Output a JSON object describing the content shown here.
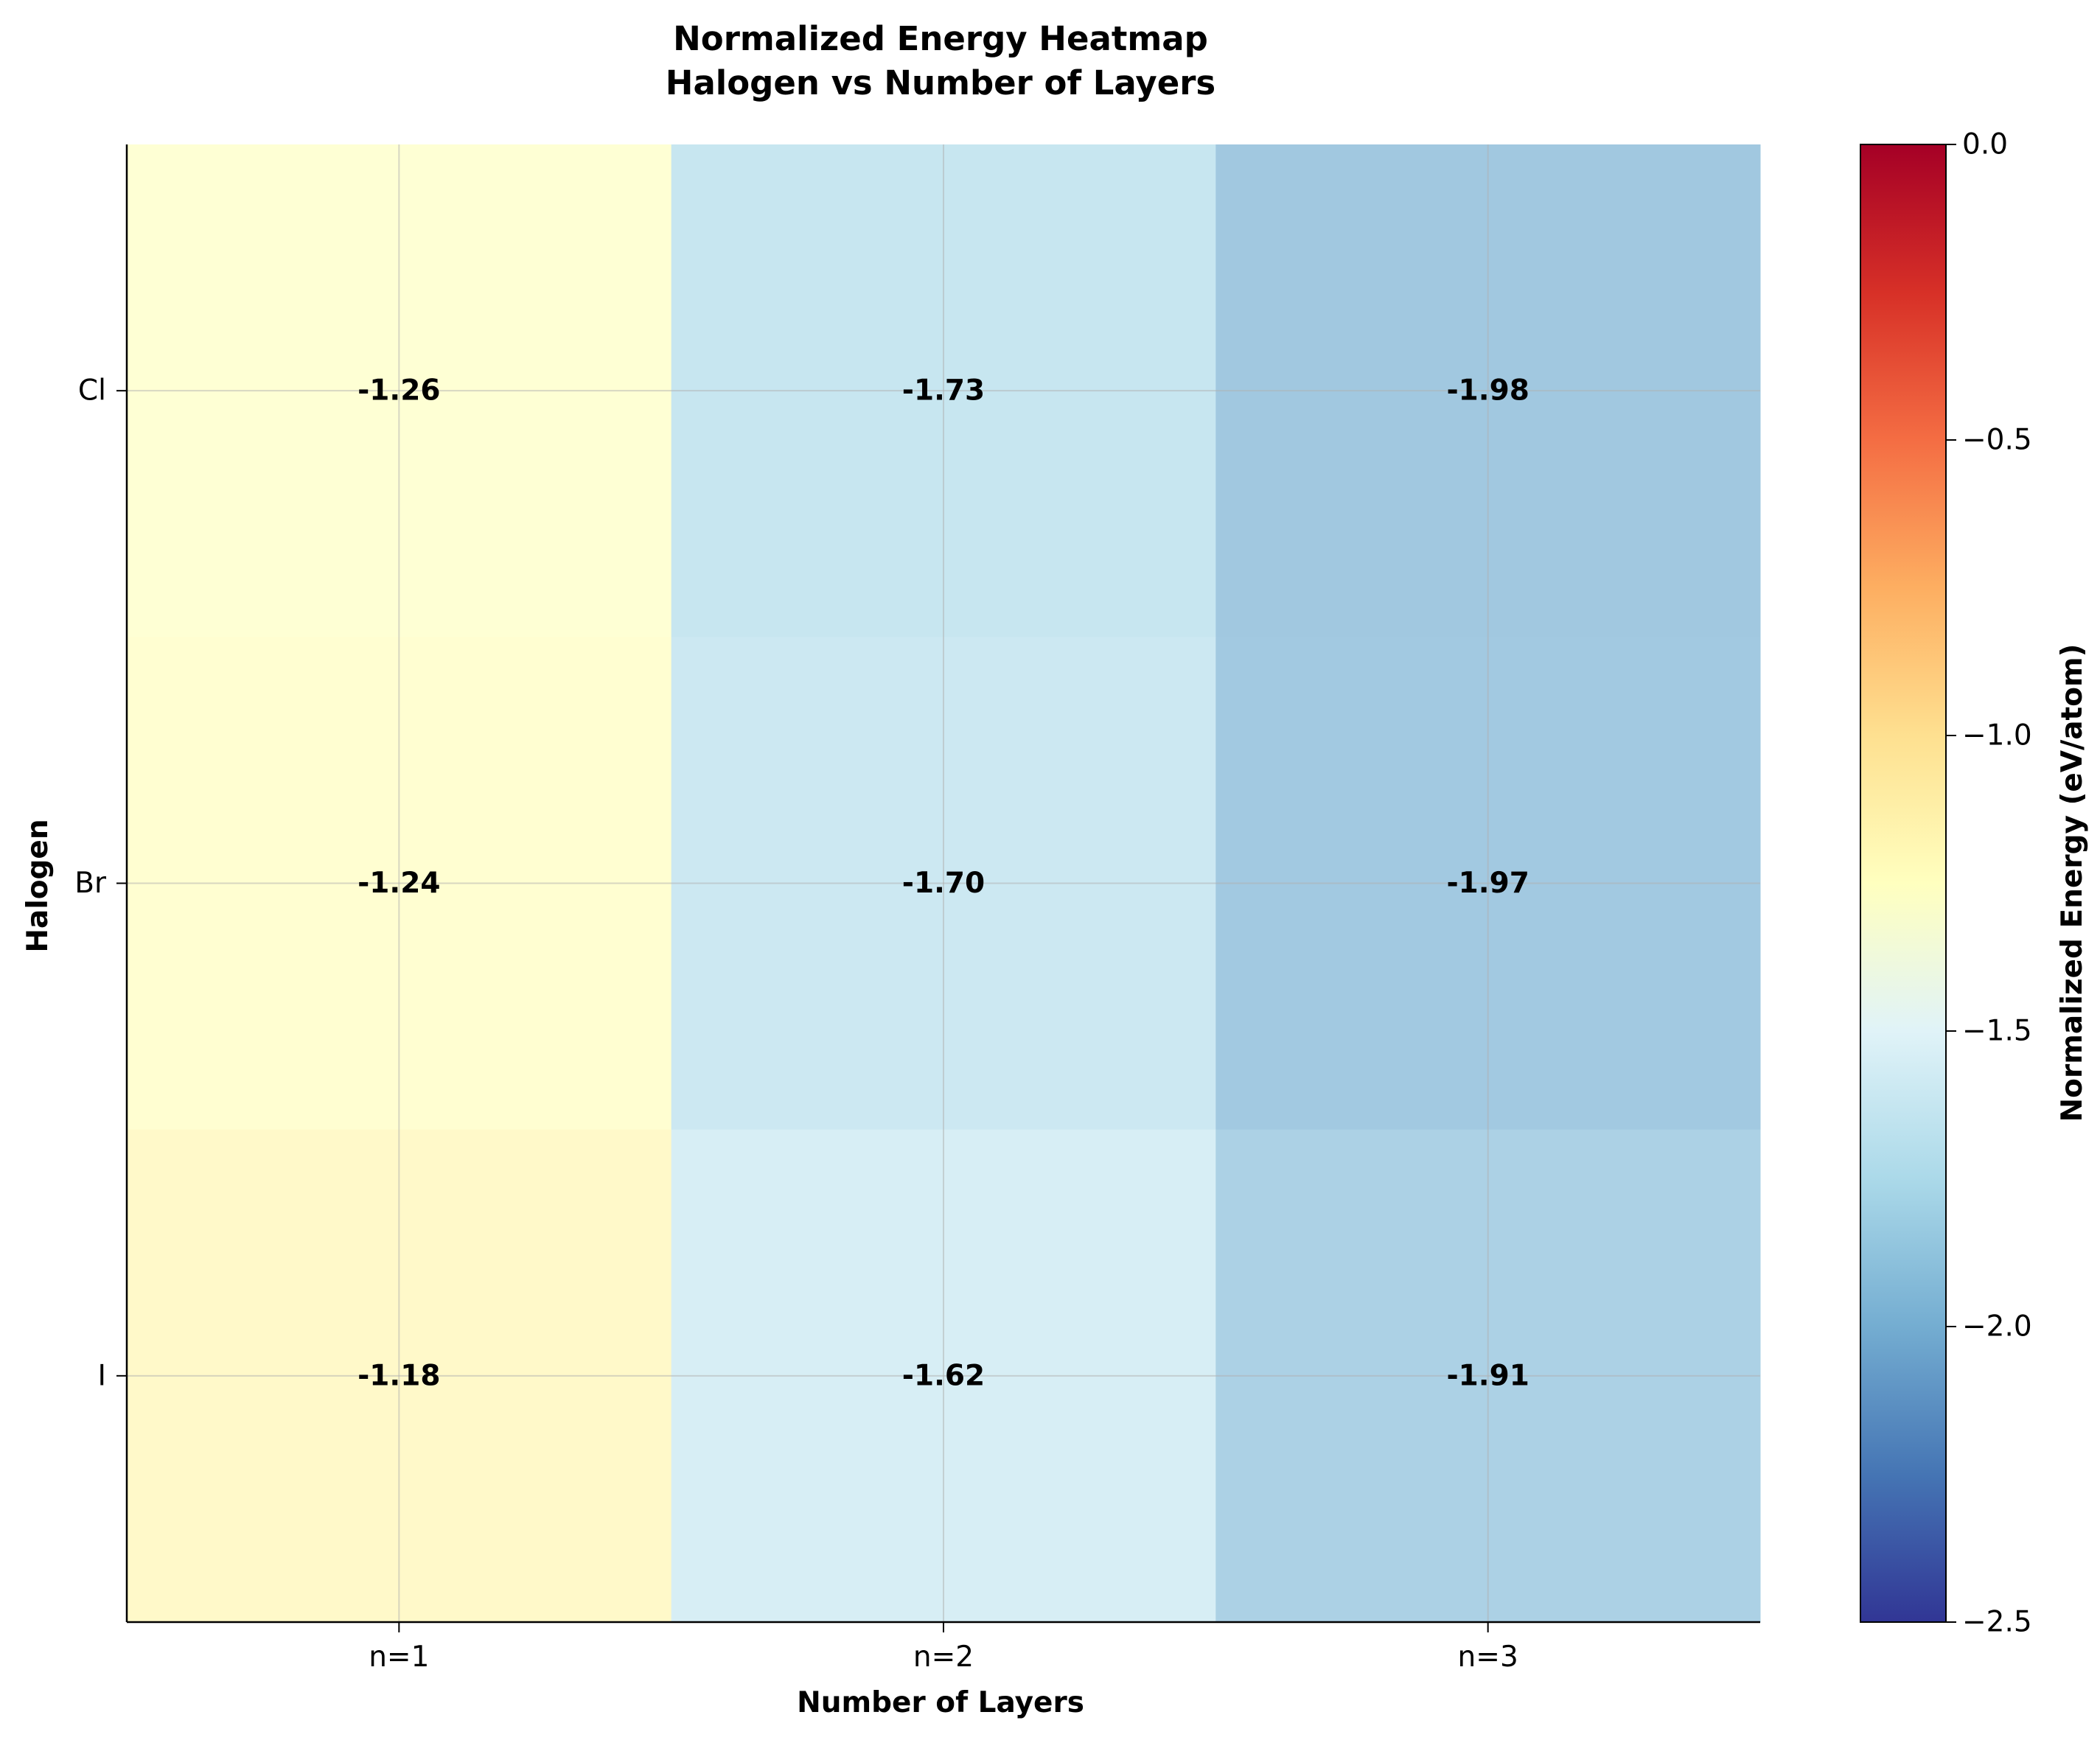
{
  "chart_data": {
    "type": "heatmap",
    "title": "Normalized Energy Heatmap",
    "subtitle": "Halogen vs Number of Layers",
    "xlabel": "Number of Layers",
    "ylabel": "Halogen",
    "x_categories": [
      "n=1",
      "n=2",
      "n=3"
    ],
    "y_categories": [
      "Cl",
      "Br",
      "I"
    ],
    "values": [
      [
        -1.26,
        -1.73,
        -1.98
      ],
      [
        -1.24,
        -1.7,
        -1.97
      ],
      [
        -1.18,
        -1.62,
        -1.91
      ]
    ],
    "value_labels": [
      [
        "-1.26",
        "-1.73",
        "-1.98"
      ],
      [
        "-1.24",
        "-1.70",
        "-1.97"
      ],
      [
        "-1.18",
        "-1.62",
        "-1.91"
      ]
    ],
    "colormap": "RdYlBu_r",
    "colorbar": {
      "label": "Normalized Energy (eV/atom)",
      "vmin": -2.5,
      "vmax": 0.0,
      "ticks": [
        0.0,
        -0.5,
        -1.0,
        -1.5,
        -2.0,
        -2.5
      ],
      "tick_labels": [
        "0.0",
        "−0.5",
        "−1.0",
        "−1.5",
        "−2.0",
        "−2.5"
      ]
    },
    "grid": true,
    "cell_alpha": 0.7
  }
}
